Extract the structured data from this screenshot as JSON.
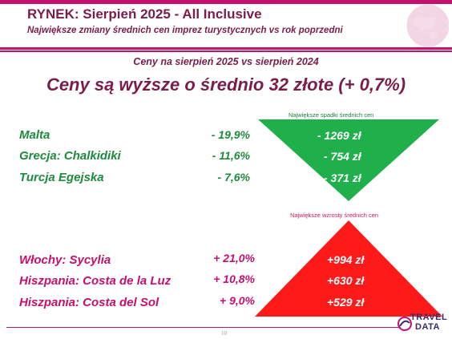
{
  "header": {
    "title": "RYNEK: Sierpień 2025 - All Inclusive",
    "subtitle": "Największe zmiany średnich cen imprez turystycznych vs rok poprzedni"
  },
  "comparison_label": "Ceny na sierpień 2025 vs sierpień 2024",
  "headline": "Ceny są wyższe o średnio 32 złote (+ 0,7%)",
  "drops": {
    "label": "Największe spadki średnich cen",
    "items": [
      {
        "destination": "Malta",
        "pct": "- 19,9%",
        "amount": "- 1269 zł"
      },
      {
        "destination": "Grecja: Chalkidiki",
        "pct": "- 11,6%",
        "amount": "- 754 zł"
      },
      {
        "destination": "Turcja Egejska",
        "pct": "- 7,6%",
        "amount": "- 371 zł"
      }
    ]
  },
  "rises": {
    "label": "Największe wzrosty średnich cen",
    "items": [
      {
        "destination": "Włochy: Sycylia",
        "pct": "+ 21,0%",
        "amount": "+994 zł"
      },
      {
        "destination": "Hiszpania: Costa de la Luz",
        "pct": "+ 10,8%",
        "amount": "+630 zł"
      },
      {
        "destination": "Hiszpania: Costa del Sol",
        "pct": "+ 9,0%",
        "amount": "+529 zł"
      }
    ]
  },
  "footer": {
    "page_number": "10",
    "logo_line1": "TRAVEL",
    "logo_line2": "DATA"
  },
  "colors": {
    "accent": "#c4106e",
    "title": "#7a1d4a",
    "drop_green": "#20b04b",
    "rise_red": "#ff1a1a"
  },
  "icons": [
    "globe-icon",
    "travel-data-logo"
  ]
}
